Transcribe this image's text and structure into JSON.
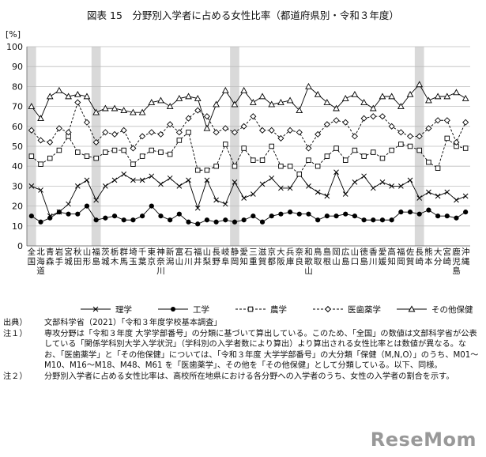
{
  "page": {
    "notes": [
      {
        "label": "出典）",
        "text": "文部科学省（2021）「令和３年度学校基本調査」"
      },
      {
        "label": "注１）",
        "text": "専攻分野は「令和３年度 大学学部番号」の分類に基づいて算出している。このため、「全国」の数値は文部科学省が公表している「関係学科別大学入学状況」（学科別の入学者数により算出）より算出される女性比率とは数値が異なる。なお、「医歯薬学」と「その他保健」については、「令和３年度 大学学部番号」の大分類「保健（M,N,O）」のうち、M01～M10、M16～M18、M48、M61 を「医歯薬学」、その他を「その他保健」として分類している。以下、同様。"
      },
      {
        "label": "注２）",
        "text": "分野別入学者に占める女性比率は、高校所在地県における各分野への入学者のうち、女性の入学者の割合を示す。"
      }
    ],
    "brand": "ReseMom"
  },
  "chart_data": {
    "type": "line",
    "title": "図表 15　分野別入学者に占める女性比率（都道府県別・令和３年度）",
    "ylabel": "[%]",
    "ylim": [
      0,
      100
    ],
    "yticks": [
      0,
      10,
      20,
      30,
      40,
      50,
      60,
      70,
      80,
      90,
      100
    ],
    "grid": true,
    "legend_position": "bottom",
    "categories": [
      "全国",
      "北海道",
      "青森",
      "岩手",
      "宮城",
      "秋田",
      "山形",
      "福島",
      "茨城",
      "栃木",
      "群馬",
      "埼玉",
      "千葉",
      "東京",
      "神奈川",
      "新潟",
      "富山",
      "石川",
      "福井",
      "山梨",
      "長野",
      "岐阜",
      "静岡",
      "愛知",
      "三重",
      "滋賀",
      "京都",
      "大阪",
      "兵庫",
      "奈良",
      "和歌山",
      "鳥取",
      "島根",
      "岡山",
      "広島",
      "山口",
      "徳島",
      "香川",
      "愛媛",
      "高知",
      "福岡",
      "佐賀",
      "長崎",
      "熊本",
      "大分",
      "宮崎",
      "鹿児島",
      "沖縄"
    ],
    "shaded_categories": [
      "全国",
      "福島",
      "静岡",
      "長崎"
    ],
    "series": [
      {
        "name": "理学",
        "marker": "x",
        "line": "solid",
        "values": [
          30,
          28,
          15,
          17,
          21,
          30,
          33,
          23,
          30,
          33,
          36,
          33,
          33,
          35,
          31,
          34,
          30,
          33,
          19,
          33,
          23,
          21,
          32,
          24,
          26,
          31,
          34,
          29,
          29,
          36,
          30,
          27,
          25,
          37,
          26,
          32,
          35,
          29,
          32,
          30,
          30,
          33,
          24,
          27,
          25,
          27,
          23,
          25
        ]
      },
      {
        "name": "工学",
        "marker": "dot",
        "line": "solid",
        "values": [
          15,
          12,
          14,
          17,
          16,
          16,
          20,
          13,
          14,
          15,
          13,
          13,
          15,
          20,
          15,
          13,
          16,
          12,
          11,
          13,
          12,
          13,
          12,
          13,
          15,
          12,
          15,
          16,
          17,
          16,
          16,
          13,
          15,
          15,
          16,
          15,
          13,
          13,
          13,
          13,
          17,
          17,
          16,
          18,
          15,
          15,
          14,
          17
        ]
      },
      {
        "name": "農学",
        "marker": "square",
        "line": "dashed",
        "values": [
          45,
          41,
          44,
          48,
          55,
          47,
          45,
          44,
          47,
          48,
          48,
          41,
          45,
          48,
          47,
          46,
          53,
          57,
          38,
          38,
          40,
          51,
          40,
          49,
          43,
          43,
          50,
          40,
          40,
          36,
          43,
          40,
          45,
          49,
          43,
          48,
          45,
          47,
          44,
          48,
          51,
          50,
          48,
          42,
          39,
          54,
          50,
          49
        ]
      },
      {
        "name": "医歯薬学",
        "marker": "diamond",
        "line": "dashed",
        "values": [
          58,
          53,
          52,
          59,
          57,
          72,
          62,
          52,
          57,
          56,
          58,
          49,
          55,
          57,
          56,
          61,
          57,
          64,
          68,
          65,
          57,
          59,
          57,
          60,
          65,
          58,
          58,
          54,
          58,
          57,
          49,
          56,
          61,
          63,
          62,
          55,
          64,
          65,
          65,
          60,
          57,
          55,
          55,
          59,
          63,
          63,
          52,
          62
        ]
      },
      {
        "name": "その他保健",
        "marker": "triangle",
        "line": "solid",
        "values": [
          70,
          64,
          75,
          78,
          75,
          76,
          75,
          67,
          69,
          69,
          68,
          67,
          67,
          72,
          73,
          70,
          74,
          75,
          74,
          59,
          71,
          78,
          71,
          78,
          72,
          75,
          71,
          72,
          73,
          68,
          80,
          76,
          72,
          69,
          74,
          76,
          72,
          69,
          75,
          75,
          70,
          76,
          81,
          73,
          75,
          75,
          77,
          74
        ]
      }
    ]
  }
}
